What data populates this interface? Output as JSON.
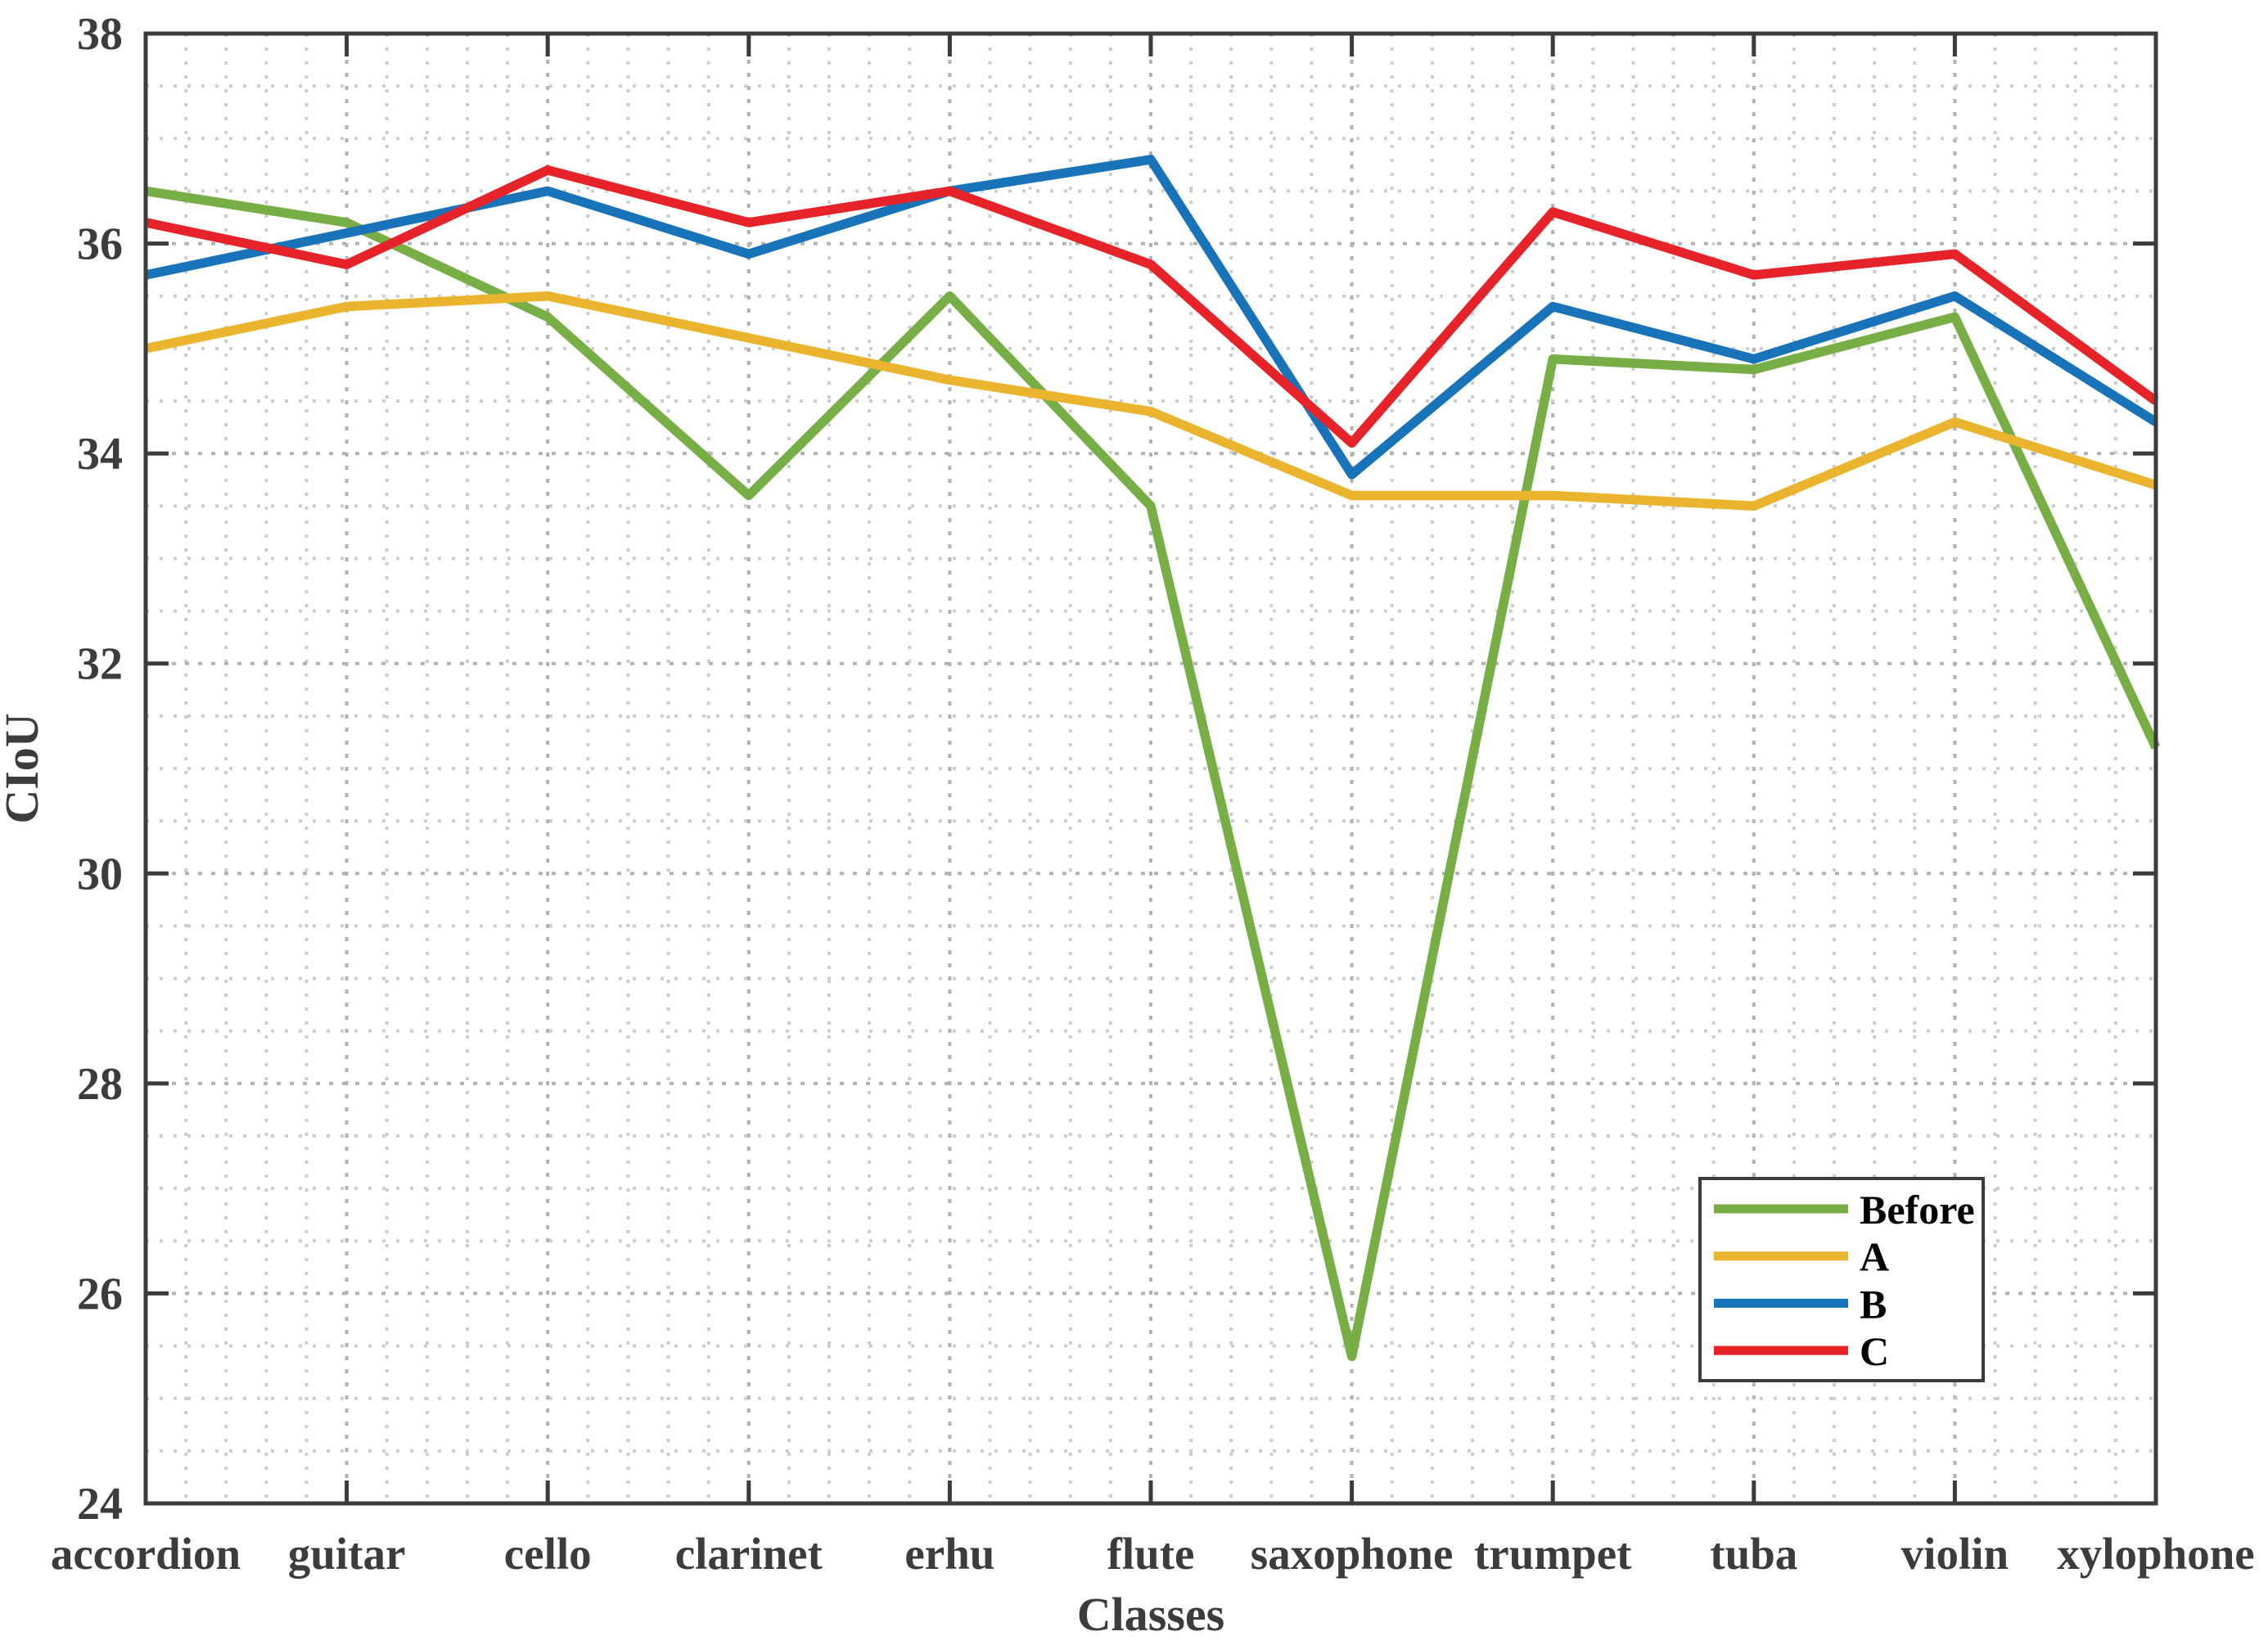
{
  "figure": {
    "background": "#FFFFFF"
  },
  "chart_data": {
    "type": "line",
    "title": "",
    "xlabel": "Classes",
    "ylabel": "CIoU",
    "categories": [
      "accordion",
      "guitar",
      "cello",
      "clarinet",
      "erhu",
      "flute",
      "saxophone",
      "trumpet",
      "tuba",
      "violin",
      "xylophone"
    ],
    "series": [
      {
        "name": "Before",
        "color": "#78AE46",
        "values": [
          36.5,
          36.2,
          35.3,
          33.6,
          35.5,
          33.5,
          25.4,
          34.9,
          34.8,
          35.3,
          31.2
        ]
      },
      {
        "name": "A",
        "color": "#EBB42E",
        "values": [
          35.0,
          35.4,
          35.5,
          35.1,
          34.7,
          34.4,
          33.6,
          33.6,
          33.5,
          34.3,
          33.7
        ]
      },
      {
        "name": "B",
        "color": "#1973B9",
        "values": [
          35.7,
          36.1,
          36.5,
          35.9,
          36.5,
          36.8,
          33.8,
          35.4,
          34.9,
          35.5,
          34.3
        ]
      },
      {
        "name": "C",
        "color": "#E62328",
        "values": [
          36.2,
          35.8,
          36.7,
          36.2,
          36.5,
          35.8,
          34.1,
          36.3,
          35.7,
          35.9,
          34.5
        ]
      }
    ],
    "ylim": [
      24,
      38
    ],
    "yticks": [
      24,
      26,
      28,
      30,
      32,
      34,
      36,
      38
    ],
    "legend": {
      "position": "lower-right",
      "entries": [
        "Before",
        "A",
        "B",
        "C"
      ]
    },
    "grid": {
      "style": "dotted",
      "horizontal_step": 0.5,
      "vertical_subdivisions_per_category": 5,
      "grid_on": true
    },
    "colors": {
      "axis": "#3C3C3C",
      "tick_label": "#3C3C3C",
      "legend_text": "#000000",
      "grid_minor": "#CDCDCD",
      "grid_major": "#B2B2B2",
      "plot_background": "#FFFFFF"
    }
  }
}
